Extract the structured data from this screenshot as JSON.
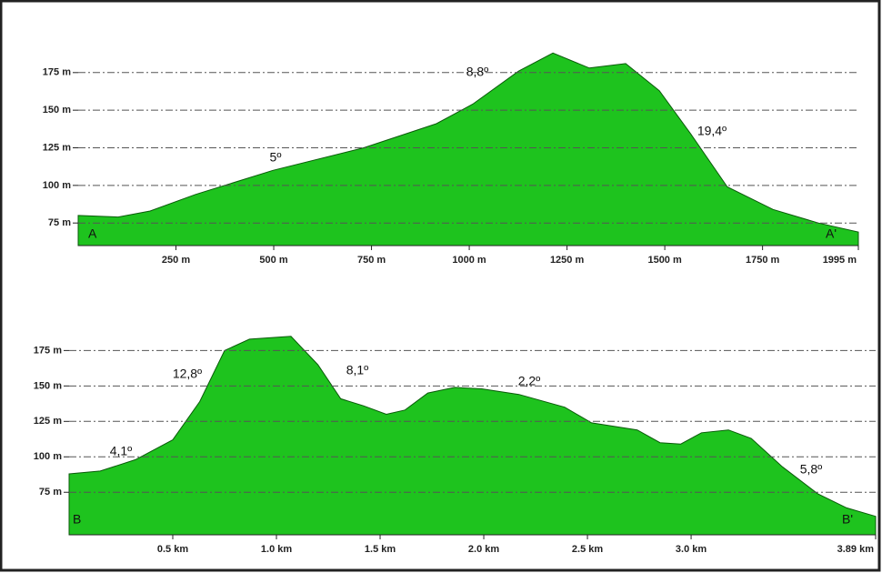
{
  "chart_data": [
    {
      "type": "area",
      "color": "#1ec31e",
      "grid": true,
      "x": [
        0,
        102,
        184,
        300,
        498,
        730,
        916,
        1009,
        1126,
        1214,
        1307,
        1400,
        1486,
        1567,
        1660,
        1777,
        1893,
        1995
      ],
      "values": [
        80,
        79,
        83,
        94,
        110,
        125,
        141,
        154,
        176,
        188,
        178,
        181,
        163,
        134,
        99,
        84,
        75,
        69
      ],
      "xlim": [
        0,
        1995
      ],
      "ylim": [
        60,
        190
      ],
      "xticks": [
        {
          "value": 250,
          "label": "250 m"
        },
        {
          "value": 500,
          "label": "500 m"
        },
        {
          "value": 750,
          "label": "750 m"
        },
        {
          "value": 1000,
          "label": "1000 m"
        },
        {
          "value": 1250,
          "label": "1250 m"
        },
        {
          "value": 1500,
          "label": "1500 m"
        },
        {
          "value": 1750,
          "label": "1750 m"
        },
        {
          "value": 1995,
          "label": "1995 m"
        }
      ],
      "yticks": [
        {
          "value": 75,
          "label": "75 m"
        },
        {
          "value": 100,
          "label": "100 m"
        },
        {
          "value": 125,
          "label": "125 m"
        },
        {
          "value": 150,
          "label": "150 m"
        },
        {
          "value": 175,
          "label": "175 m"
        }
      ],
      "annotations": [
        "A",
        "A'",
        "5º",
        "8,8º",
        "19,4º"
      ]
    },
    {
      "type": "area",
      "color": "#1ec31e",
      "grid": true,
      "x": [
        0,
        0.15,
        0.32,
        0.5,
        0.63,
        0.75,
        0.87,
        1.07,
        1.2,
        1.31,
        1.42,
        1.53,
        1.62,
        1.73,
        1.86,
        1.99,
        2.17,
        2.39,
        2.52,
        2.74,
        2.85,
        2.95,
        3.05,
        3.18,
        3.29,
        3.44,
        3.61,
        3.75,
        3.89
      ],
      "values": [
        88,
        90,
        98,
        112,
        139,
        175,
        183,
        185,
        165,
        141,
        136,
        130,
        133,
        145,
        149,
        148,
        144,
        135,
        124,
        119,
        110,
        109,
        117,
        119,
        113,
        93,
        74,
        64,
        58
      ],
      "xlim": [
        0,
        3.89
      ],
      "ylim": [
        45,
        190
      ],
      "xticks": [
        {
          "value": 0.5,
          "label": "0.5 km"
        },
        {
          "value": 1.0,
          "label": "1.0 km"
        },
        {
          "value": 1.5,
          "label": "1.5 km"
        },
        {
          "value": 2.0,
          "label": "2.0 km"
        },
        {
          "value": 2.5,
          "label": "2.5 km"
        },
        {
          "value": 3.0,
          "label": "3.0 km"
        },
        {
          "value": 3.89,
          "label": "3.89 km"
        }
      ],
      "yticks": [
        {
          "value": 75,
          "label": "75 m"
        },
        {
          "value": 100,
          "label": "100 m"
        },
        {
          "value": 125,
          "label": "125 m"
        },
        {
          "value": 150,
          "label": "150 m"
        },
        {
          "value": 175,
          "label": "175 m"
        }
      ],
      "annotations": [
        "B",
        "B'",
        "4,1º",
        "12,8º",
        "8,1º",
        "2,2º",
        "5,8º"
      ]
    }
  ]
}
